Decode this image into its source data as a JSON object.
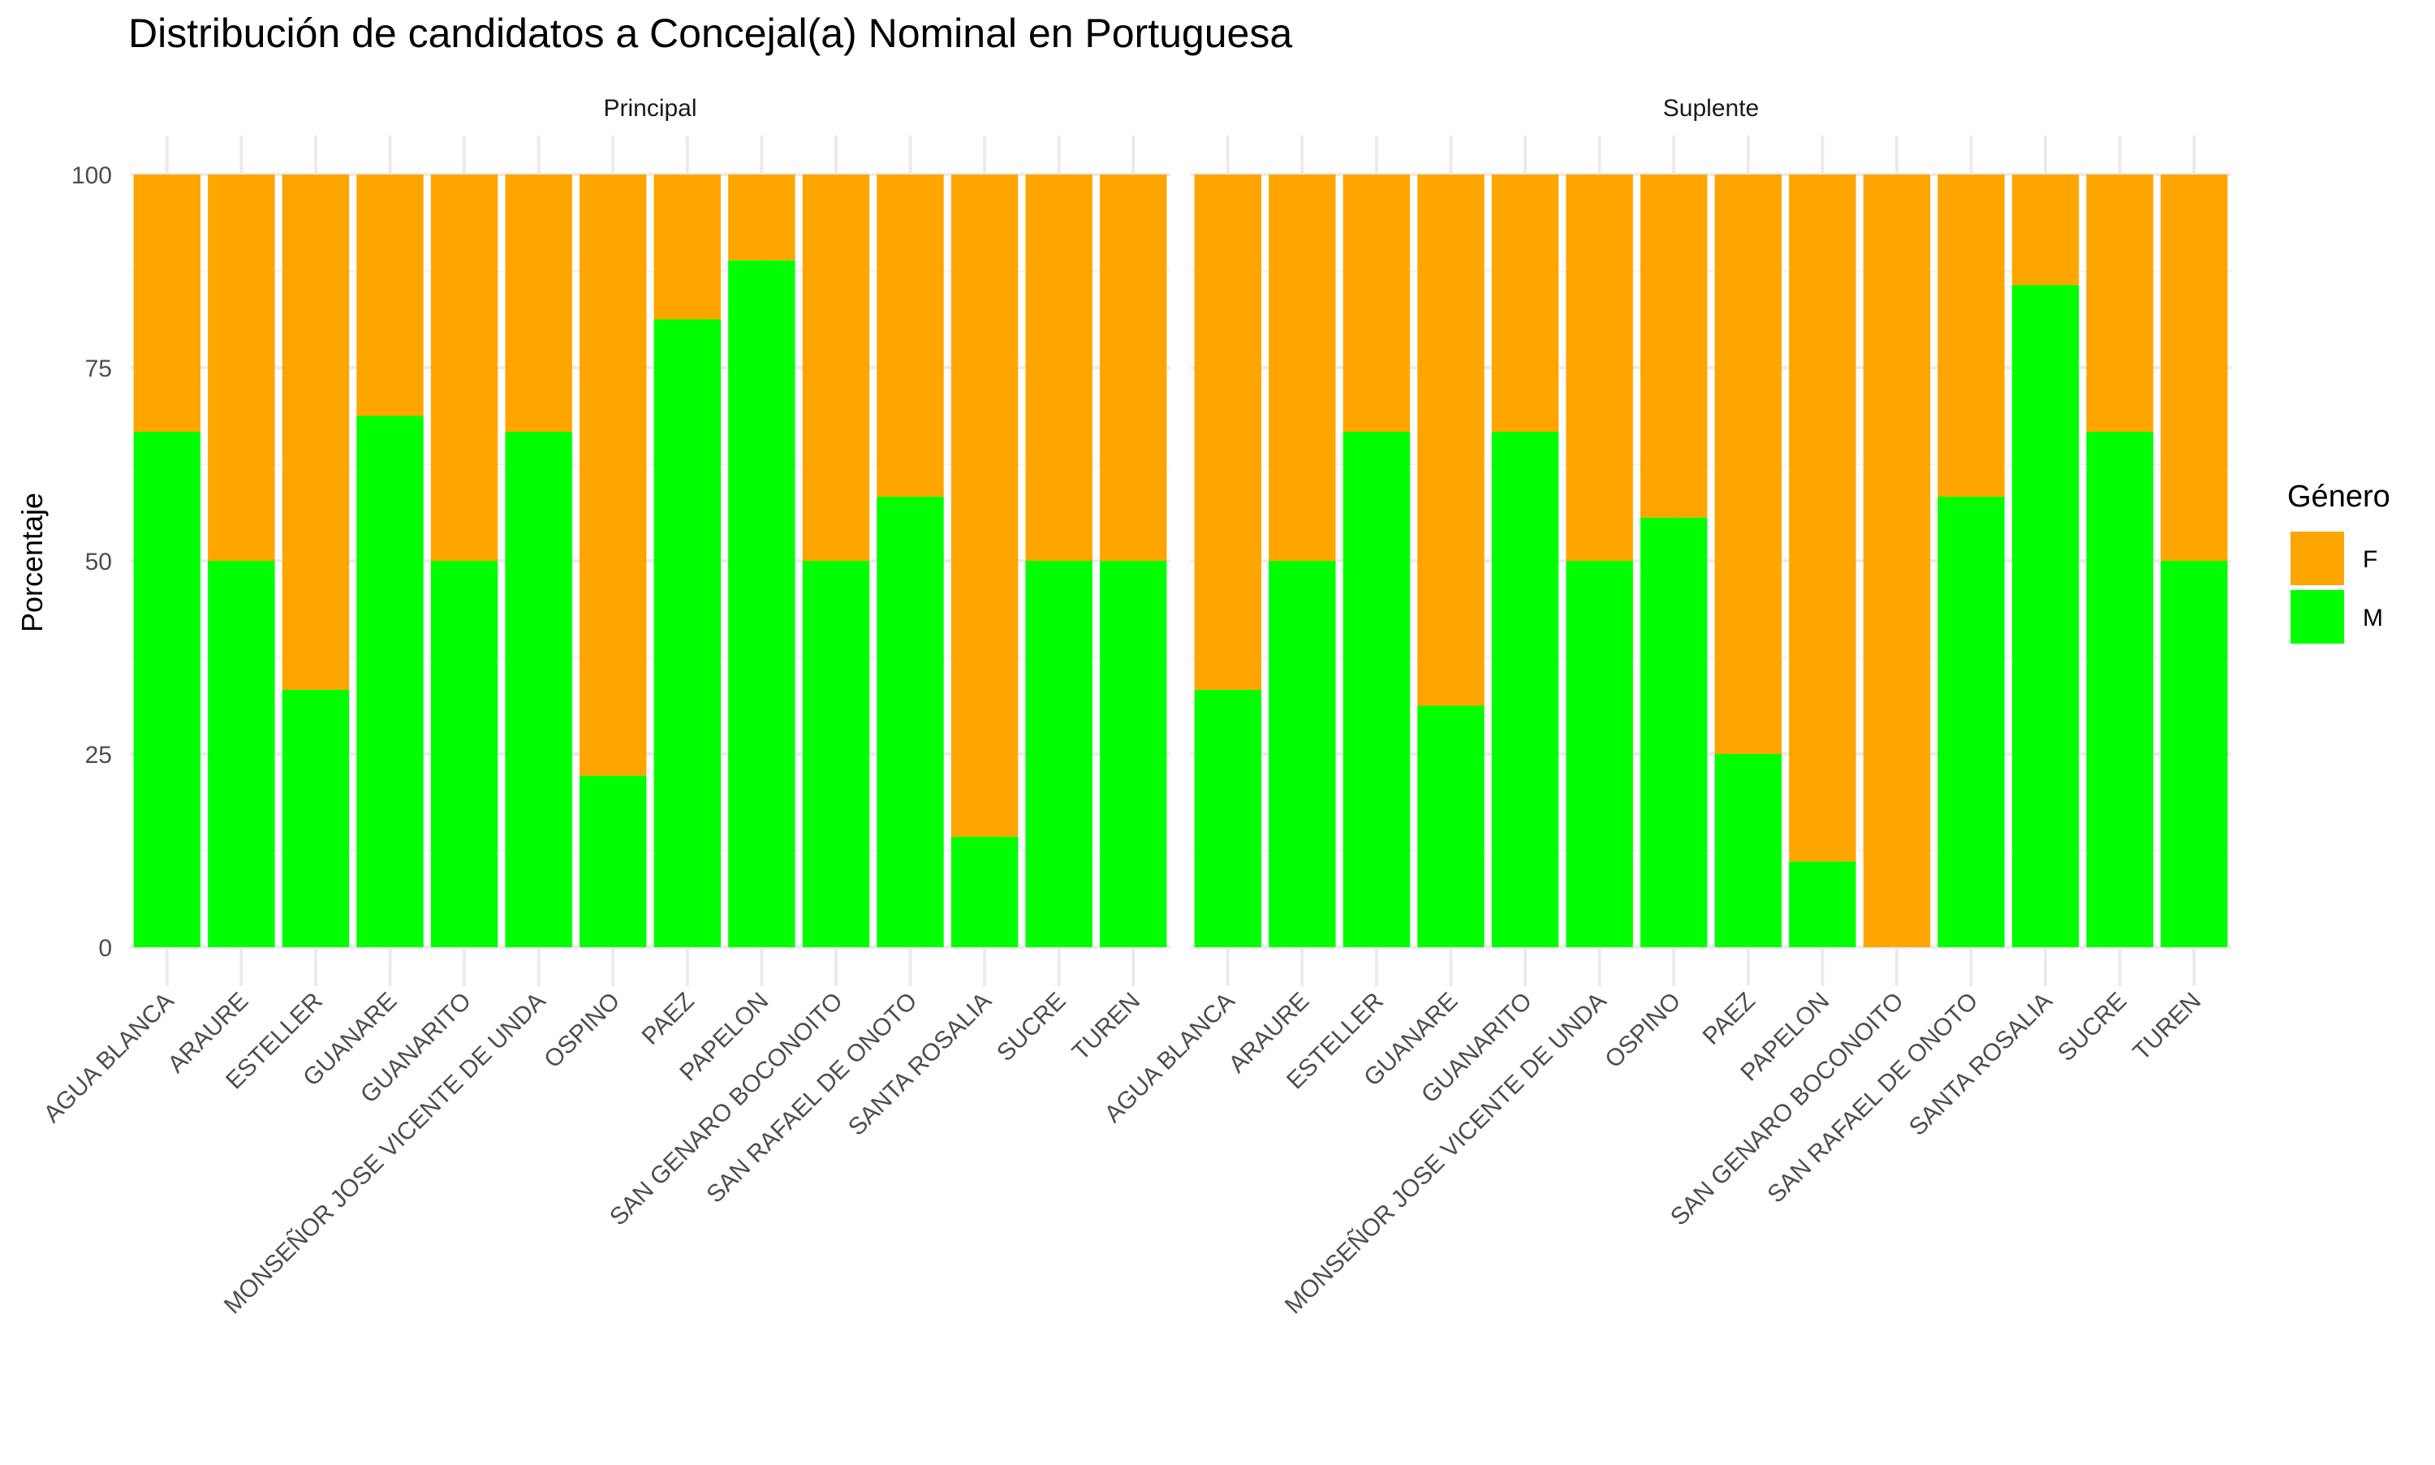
{
  "chart_data": {
    "type": "bar",
    "stacked": true,
    "title": "Distribución de candidatos a Concejal(a) Nominal en Portuguesa",
    "ylabel": "Porcentaje",
    "xlabel": "",
    "ylim": [
      0,
      100
    ],
    "yticks": [
      0,
      25,
      50,
      75,
      100
    ],
    "grid": true,
    "legend": {
      "title": "Género",
      "position": "right",
      "entries": [
        {
          "name": "F",
          "color": "#FFA500"
        },
        {
          "name": "M",
          "color": "#00FF00"
        }
      ]
    },
    "categories": [
      "AGUA BLANCA",
      "ARAURE",
      "ESTELLER",
      "GUANARE",
      "GUANARITO",
      "MONSEÑOR JOSE VICENTE DE UNDA",
      "OSPINO",
      "PAEZ",
      "PAPELON",
      "SAN GENARO BOCONOITO",
      "SAN RAFAEL DE ONOTO",
      "SANTA ROSALIA",
      "SUCRE",
      "TUREN"
    ],
    "panels": [
      {
        "name": "Principal",
        "series": [
          {
            "name": "M",
            "color": "#00FF00",
            "values": [
              66.7,
              50,
              33.3,
              68.75,
              50,
              66.7,
              22.2,
              81.25,
              88.9,
              50,
              58.3,
              14.3,
              50,
              50
            ]
          },
          {
            "name": "F",
            "color": "#FFA500",
            "values": [
              33.3,
              50,
              66.7,
              31.25,
              50,
              33.3,
              77.8,
              18.75,
              11.1,
              50,
              41.7,
              85.7,
              50,
              50
            ]
          }
        ]
      },
      {
        "name": "Suplente",
        "series": [
          {
            "name": "M",
            "color": "#00FF00",
            "values": [
              33.3,
              50,
              66.7,
              31.25,
              66.7,
              50,
              55.6,
              25,
              11.1,
              0,
              58.3,
              85.7,
              66.7,
              50
            ]
          },
          {
            "name": "F",
            "color": "#FFA500",
            "values": [
              66.7,
              50,
              33.3,
              68.75,
              33.3,
              50,
              44.4,
              75,
              88.9,
              100,
              41.7,
              14.3,
              33.3,
              50
            ]
          }
        ]
      }
    ]
  }
}
